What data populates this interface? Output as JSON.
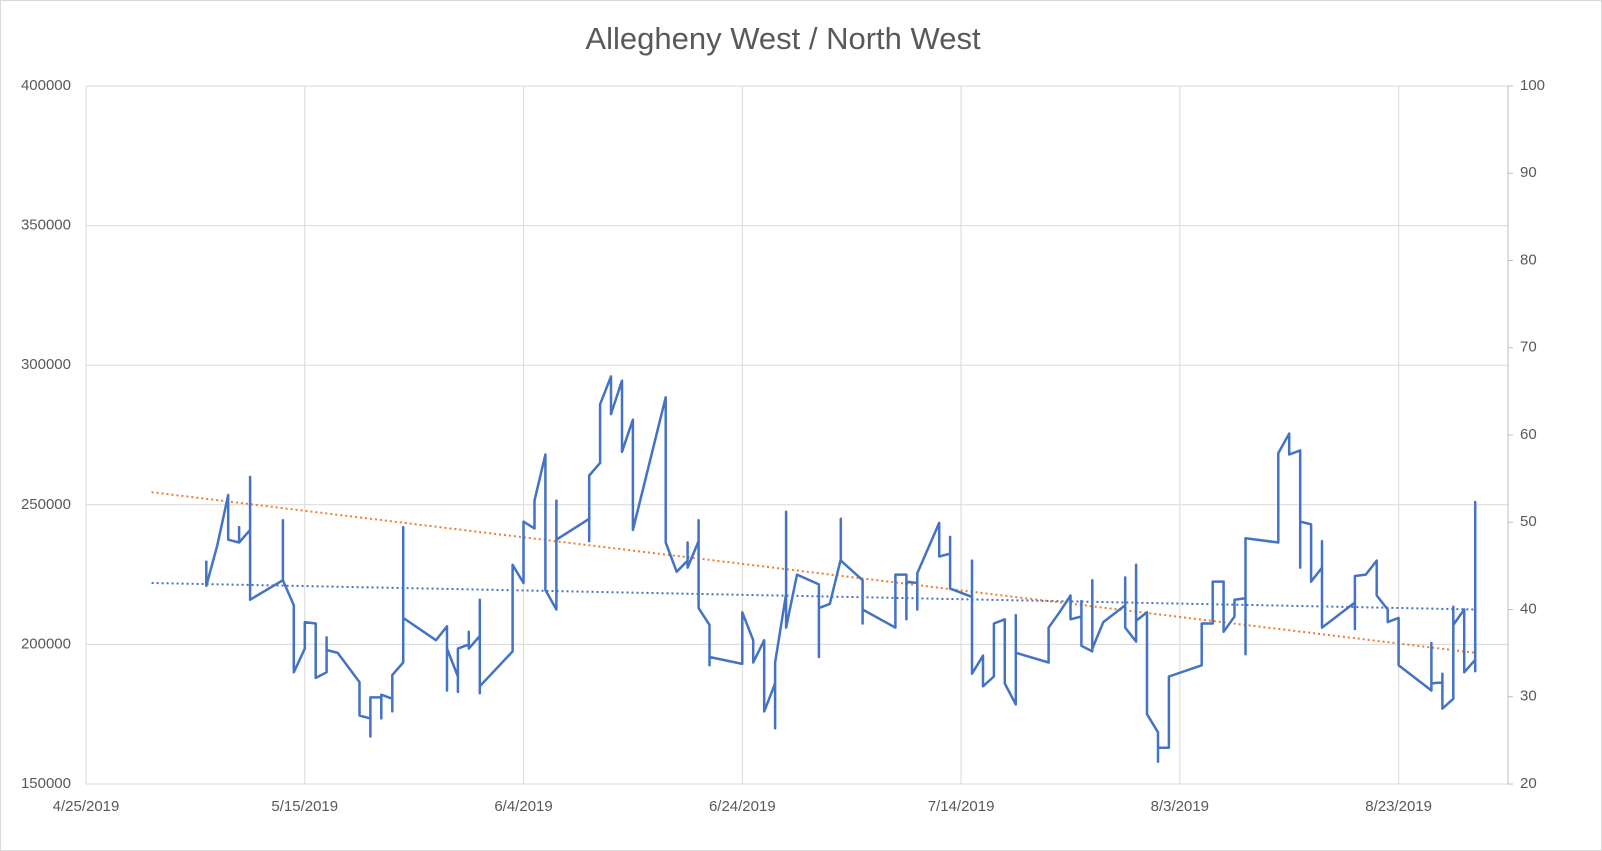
{
  "chart_data": {
    "type": "line",
    "title": "Allegheny West / North West",
    "xlim": [
      "2019-04-25",
      "2019-09-02"
    ],
    "xticks": [
      {
        "value": "2019-04-25",
        "label": "4/25/2019"
      },
      {
        "value": "2019-05-15",
        "label": "5/15/2019"
      },
      {
        "value": "2019-06-04",
        "label": "6/4/2019"
      },
      {
        "value": "2019-06-24",
        "label": "6/24/2019"
      },
      {
        "value": "2019-07-14",
        "label": "7/14/2019"
      },
      {
        "value": "2019-08-03",
        "label": "8/3/2019"
      },
      {
        "value": "2019-08-23",
        "label": "8/23/2019"
      }
    ],
    "ylim": [
      150000,
      400000
    ],
    "yticks": [
      150000,
      200000,
      250000,
      300000,
      350000,
      400000
    ],
    "y2lim": [
      20,
      100
    ],
    "y2ticks": [
      20,
      30,
      40,
      50,
      60,
      70,
      80,
      90,
      100
    ],
    "grid": true,
    "series": [
      {
        "color": "#4472c4",
        "x": [
          "2019-05-06",
          "2019-05-06",
          "2019-05-07",
          "2019-05-08",
          "2019-05-08",
          "2019-05-09",
          "2019-05-09",
          "2019-05-09",
          "2019-05-10",
          "2019-05-10",
          "2019-05-10",
          "2019-05-13",
          "2019-05-13",
          "2019-05-13",
          "2019-05-14",
          "2019-05-14",
          "2019-05-15",
          "2019-05-15",
          "2019-05-16",
          "2019-05-16",
          "2019-05-17",
          "2019-05-17",
          "2019-05-17",
          "2019-05-18",
          "2019-05-20",
          "2019-05-20",
          "2019-05-21",
          "2019-05-21",
          "2019-05-21",
          "2019-05-22",
          "2019-05-22",
          "2019-05-22",
          "2019-05-23",
          "2019-05-23",
          "2019-05-23",
          "2019-05-24",
          "2019-05-24",
          "2019-05-24",
          "2019-05-27",
          "2019-05-28",
          "2019-05-28",
          "2019-05-28",
          "2019-05-29",
          "2019-05-29",
          "2019-05-29",
          "2019-05-30",
          "2019-05-30",
          "2019-05-30",
          "2019-05-31",
          "2019-05-31",
          "2019-05-31",
          "2019-05-31",
          "2019-06-03",
          "2019-06-03",
          "2019-06-04",
          "2019-06-04",
          "2019-06-05",
          "2019-06-05",
          "2019-06-06",
          "2019-06-06",
          "2019-06-07",
          "2019-06-07",
          "2019-06-07",
          "2019-06-10",
          "2019-06-10",
          "2019-06-10",
          "2019-06-11",
          "2019-06-11",
          "2019-06-12",
          "2019-06-12",
          "2019-06-13",
          "2019-06-13",
          "2019-06-14",
          "2019-06-14",
          "2019-06-17",
          "2019-06-17",
          "2019-06-18",
          "2019-06-19",
          "2019-06-19",
          "2019-06-19",
          "2019-06-20",
          "2019-06-20",
          "2019-06-20",
          "2019-06-21",
          "2019-06-21",
          "2019-06-21",
          "2019-06-24",
          "2019-06-24",
          "2019-06-25",
          "2019-06-25",
          "2019-06-26",
          "2019-06-26",
          "2019-06-27",
          "2019-06-27",
          "2019-06-27",
          "2019-06-28",
          "2019-06-28",
          "2019-06-28",
          "2019-06-29",
          "2019-07-01",
          "2019-07-01",
          "2019-07-01",
          "2019-07-02",
          "2019-07-03",
          "2019-07-03",
          "2019-07-03",
          "2019-07-05",
          "2019-07-05",
          "2019-07-05",
          "2019-07-08",
          "2019-07-08",
          "2019-07-09",
          "2019-07-09",
          "2019-07-09",
          "2019-07-10",
          "2019-07-10",
          "2019-07-10",
          "2019-07-12",
          "2019-07-12",
          "2019-07-13",
          "2019-07-13",
          "2019-07-13",
          "2019-07-15",
          "2019-07-15",
          "2019-07-15",
          "2019-07-16",
          "2019-07-16",
          "2019-07-17",
          "2019-07-17",
          "2019-07-18",
          "2019-07-18",
          "2019-07-19",
          "2019-07-19",
          "2019-07-19",
          "2019-07-22",
          "2019-07-22",
          "2019-07-23",
          "2019-07-24",
          "2019-07-24",
          "2019-07-25",
          "2019-07-25",
          "2019-07-25",
          "2019-07-26",
          "2019-07-26",
          "2019-07-26",
          "2019-07-27",
          "2019-07-29",
          "2019-07-29",
          "2019-07-29",
          "2019-07-30",
          "2019-07-30",
          "2019-07-30",
          "2019-07-31",
          "2019-07-31",
          "2019-08-01",
          "2019-08-01",
          "2019-08-01",
          "2019-08-02",
          "2019-08-02",
          "2019-08-02",
          "2019-08-05",
          "2019-08-05",
          "2019-08-06",
          "2019-08-06",
          "2019-08-07",
          "2019-08-07",
          "2019-08-08",
          "2019-08-08",
          "2019-08-09",
          "2019-08-09",
          "2019-08-09",
          "2019-08-12",
          "2019-08-12",
          "2019-08-13",
          "2019-08-13",
          "2019-08-14",
          "2019-08-14",
          "2019-08-14",
          "2019-08-15",
          "2019-08-15",
          "2019-08-16",
          "2019-08-16",
          "2019-08-16",
          "2019-08-19",
          "2019-08-19",
          "2019-08-19",
          "2019-08-20",
          "2019-08-21",
          "2019-08-21",
          "2019-08-22",
          "2019-08-22",
          "2019-08-23",
          "2019-08-23",
          "2019-08-26",
          "2019-08-26",
          "2019-08-26",
          "2019-08-27",
          "2019-08-27",
          "2019-08-27",
          "2019-08-28",
          "2019-08-28",
          "2019-08-28",
          "2019-08-29",
          "2019-08-29",
          "2019-08-30",
          "2019-08-30",
          "2019-08-30"
        ],
        "values": [
          230000,
          221000,
          235500,
          253500,
          237500,
          236500,
          242000,
          236500,
          241000,
          260000,
          216000,
          223000,
          244500,
          223000,
          214000,
          190000,
          198500,
          208000,
          207500,
          188000,
          190000,
          202500,
          198000,
          197000,
          186500,
          174500,
          173500,
          167000,
          181000,
          181000,
          173500,
          182000,
          180500,
          176000,
          189000,
          193500,
          242000,
          209500,
          201500,
          206500,
          183500,
          198500,
          188500,
          183000,
          198500,
          200000,
          204500,
          198500,
          203000,
          216000,
          182500,
          185000,
          197500,
          228500,
          222000,
          244000,
          241500,
          251500,
          268000,
          219500,
          212500,
          251500,
          237500,
          245000,
          237000,
          260500,
          265000,
          286000,
          296000,
          282500,
          294500,
          269000,
          280500,
          241000,
          288500,
          236500,
          226000,
          230000,
          236500,
          227500,
          237000,
          244500,
          213000,
          207000,
          192500,
          195500,
          193000,
          211500,
          201500,
          193500,
          201500,
          176000,
          186000,
          170000,
          193500,
          218000,
          247500,
          206000,
          225000,
          221500,
          195500,
          213000,
          214500,
          230500,
          245000,
          230000,
          223000,
          207500,
          212500,
          206000,
          225000,
          225000,
          209000,
          222500,
          222000,
          212500,
          225500,
          243500,
          231500,
          232500,
          238500,
          220000,
          217000,
          230000,
          189500,
          196000,
          185000,
          188500,
          207500,
          209000,
          186000,
          178500,
          210500,
          197000,
          193500,
          206000,
          211500,
          217500,
          209000,
          210000,
          215500,
          199500,
          197500,
          223000,
          198500,
          208000,
          214000,
          224000,
          206000,
          201000,
          228500,
          208500,
          211500,
          175000,
          168500,
          158000,
          163000,
          163000,
          166500,
          188500,
          192500,
          207500,
          207500,
          222500,
          222500,
          204500,
          210000,
          216000,
          216500,
          196500,
          238000,
          236500,
          268500,
          275500,
          268000,
          269500,
          227500,
          244000,
          243000,
          222500,
          227500,
          237000,
          206000,
          215000,
          205500,
          224500,
          225000,
          230000,
          217500,
          212500,
          208000,
          209500,
          192500,
          183500,
          200500,
          186000,
          186500,
          189500,
          177000,
          180500,
          213500,
          207000,
          212500,
          190000,
          194500,
          251000,
          190000
        ]
      }
    ],
    "trendlines": [
      {
        "color": "#4472c4",
        "x": [
          "2019-05-01",
          "2019-08-30"
        ],
        "values": [
          222000,
          212500
        ]
      },
      {
        "color": "#ed7d31",
        "x": [
          "2019-05-01",
          "2019-08-30"
        ],
        "values": [
          254500,
          197000
        ]
      }
    ]
  }
}
